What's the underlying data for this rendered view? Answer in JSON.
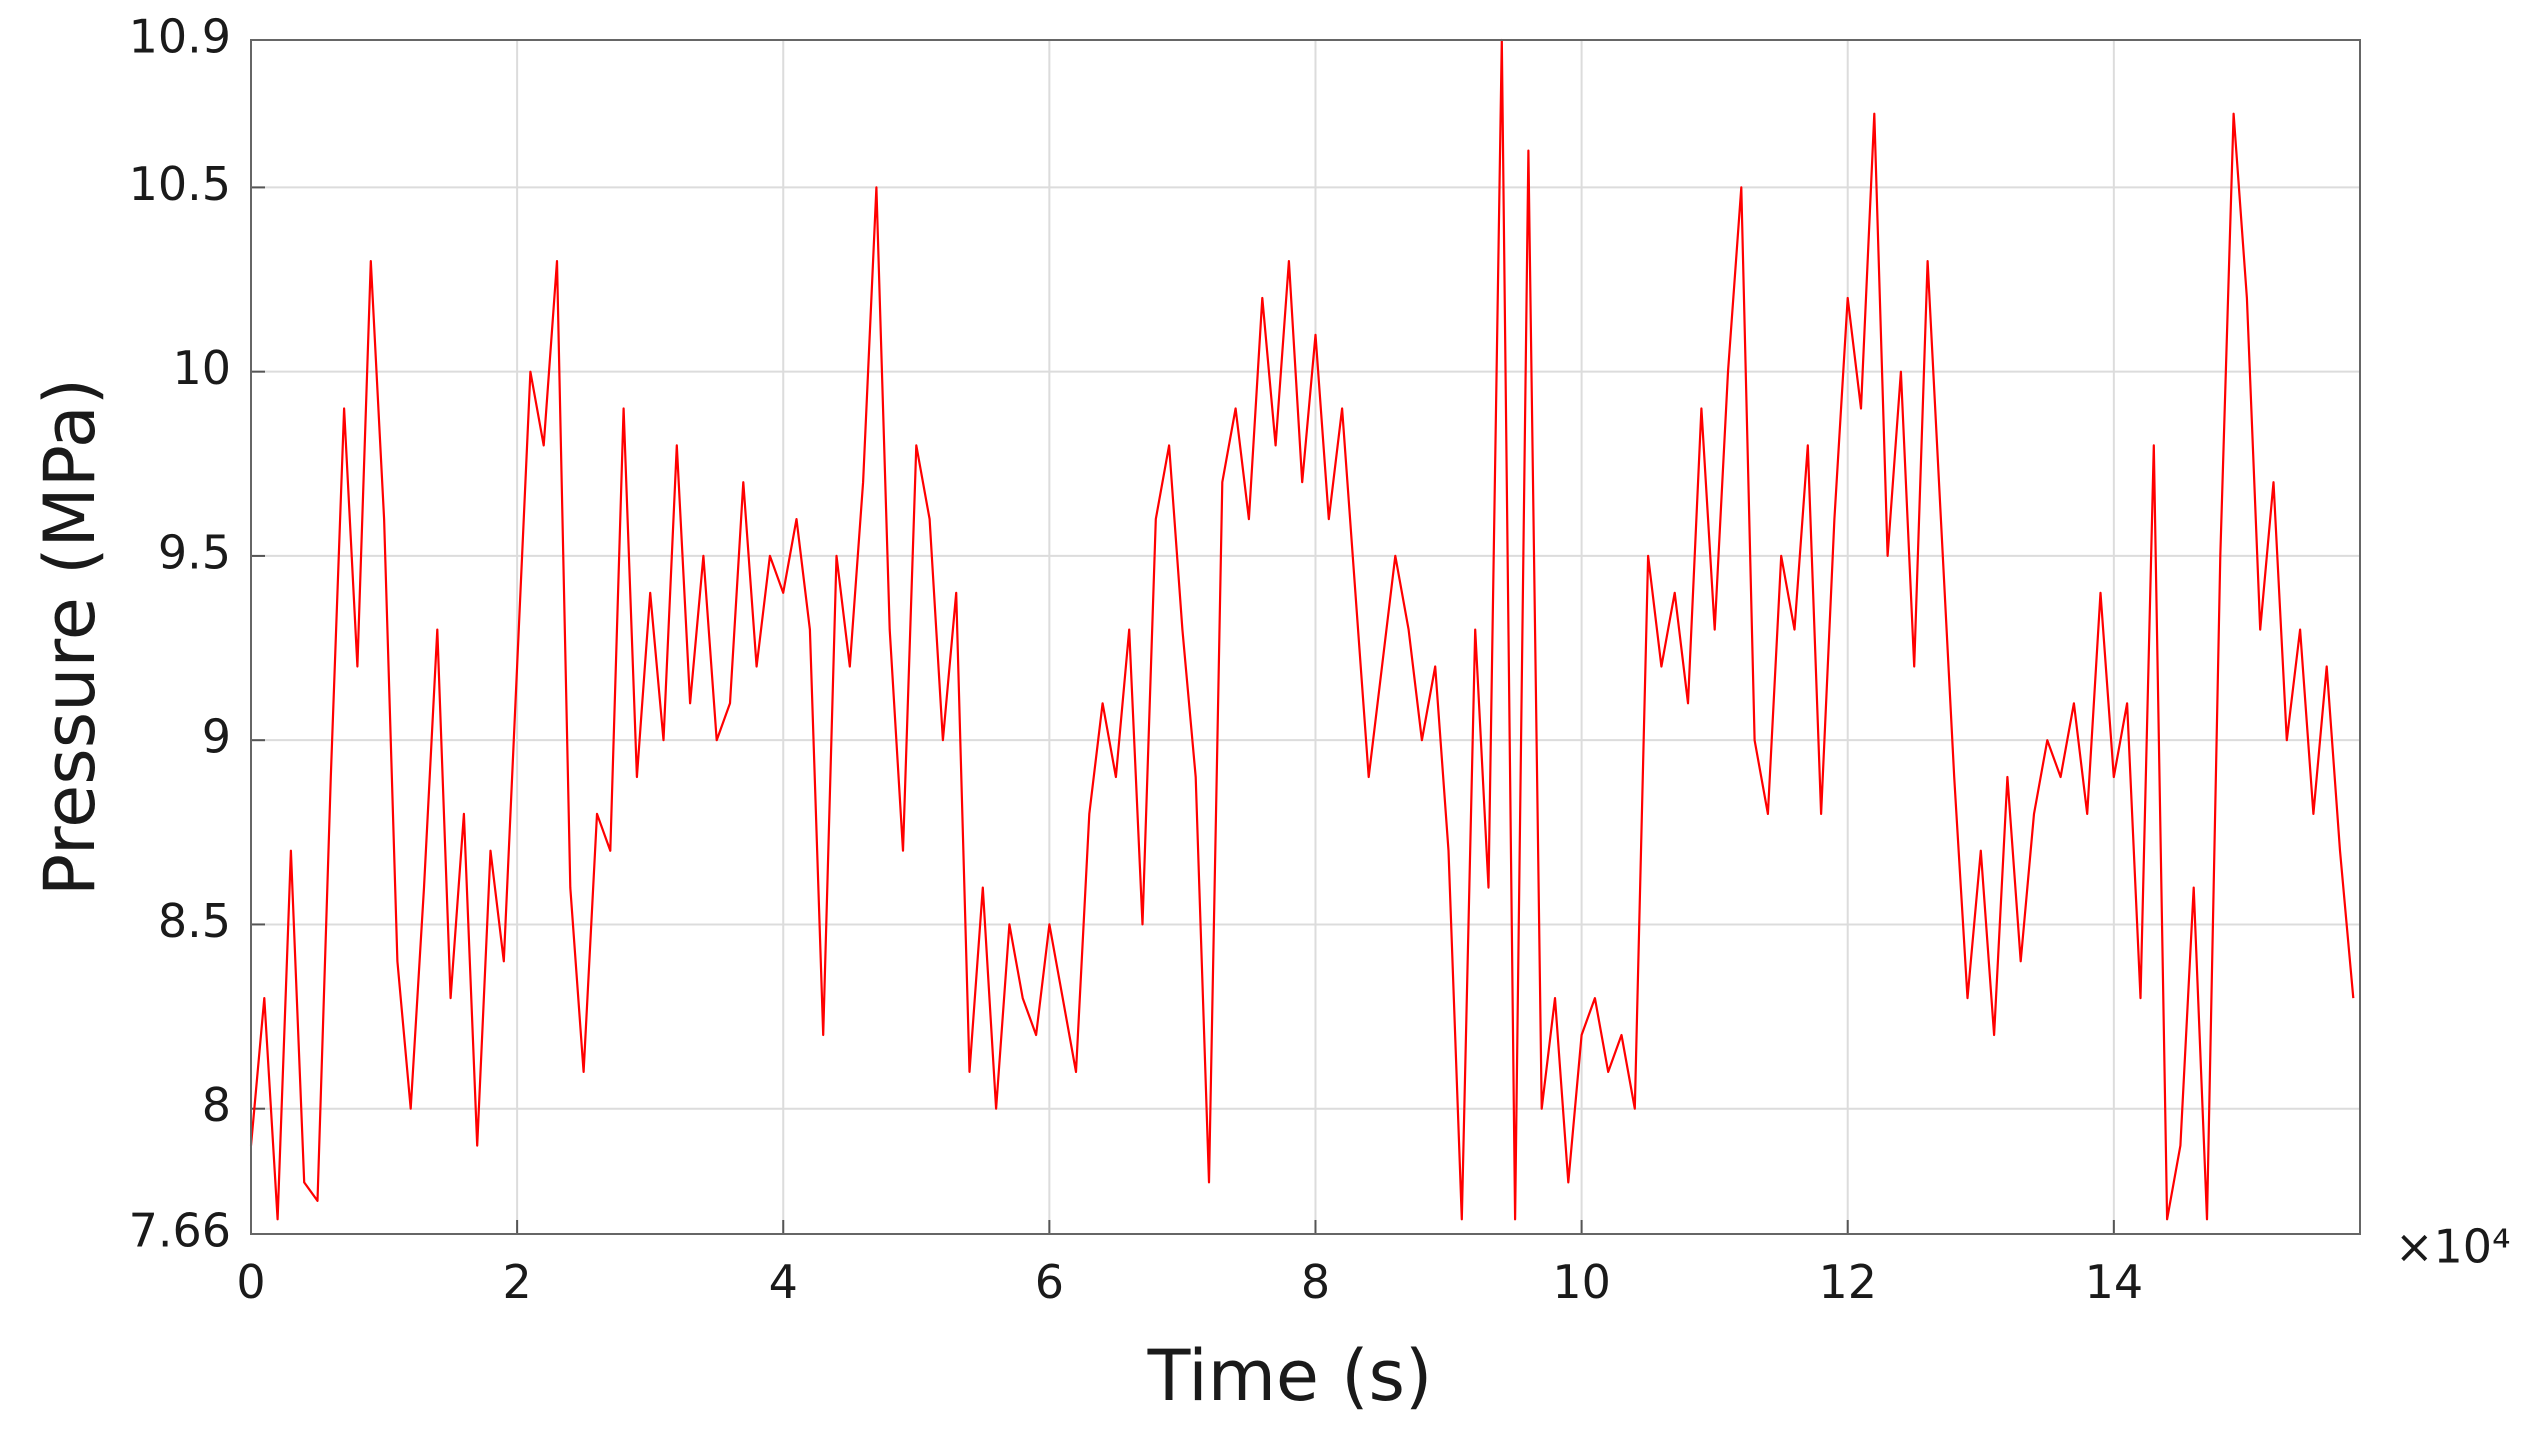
{
  "chart_data": {
    "type": "line",
    "xlabel": "Time (s)",
    "ylabel": "Pressure (MPa)",
    "x_multiplier_label": "×10⁴",
    "xlim": [
      0,
      15.85
    ],
    "ylim": [
      7.66,
      10.9
    ],
    "xticks": [
      0,
      2,
      4,
      6,
      8,
      10,
      12,
      14
    ],
    "yticks": [
      7.66,
      8,
      8.5,
      9,
      9.5,
      10,
      10.5,
      10.9
    ],
    "grid": true,
    "series": [
      {
        "color": "#ff0000",
        "x": [
          0,
          0.1,
          0.2,
          0.3,
          0.4,
          0.5,
          0.6,
          0.7,
          0.8,
          0.9,
          1,
          1.1,
          1.2,
          1.3,
          1.4,
          1.5,
          1.6,
          1.7,
          1.8,
          1.9,
          2,
          2.1,
          2.2,
          2.3,
          2.4,
          2.5,
          2.6,
          2.7,
          2.8,
          2.9,
          3,
          3.1,
          3.2,
          3.3,
          3.4,
          3.5,
          3.6,
          3.7,
          3.8,
          3.9,
          4,
          4.1,
          4.2,
          4.3,
          4.4,
          4.5,
          4.6,
          4.7,
          4.8,
          4.9,
          5,
          5.1,
          5.2,
          5.3,
          5.4,
          5.5,
          5.6,
          5.7,
          5.8,
          5.9,
          6,
          6.1,
          6.2,
          6.3,
          6.4,
          6.5,
          6.6,
          6.7,
          6.8,
          6.9,
          7,
          7.1,
          7.2,
          7.3,
          7.4,
          7.5,
          7.6,
          7.7,
          7.8,
          7.9,
          8,
          8.1,
          8.2,
          8.3,
          8.4,
          8.5,
          8.6,
          8.7,
          8.8,
          8.9,
          9,
          9.1,
          9.2,
          9.3,
          9.4,
          9.5,
          9.6,
          9.7,
          9.8,
          9.9,
          10,
          10.1,
          10.2,
          10.3,
          10.4,
          10.5,
          10.6,
          10.7,
          10.8,
          10.9,
          11,
          11.1,
          11.2,
          11.3,
          11.4,
          11.5,
          11.6,
          11.7,
          11.8,
          11.9,
          12,
          12.1,
          12.2,
          12.3,
          12.4,
          12.5,
          12.6,
          12.7,
          12.8,
          12.9,
          13,
          13.1,
          13.2,
          13.3,
          13.4,
          13.5,
          13.6,
          13.7,
          13.8,
          13.9,
          14,
          14.1,
          14.2,
          14.3,
          14.4,
          14.5,
          14.6,
          14.7,
          14.8,
          14.9,
          15,
          15.1,
          15.2,
          15.3,
          15.4,
          15.5,
          15.6,
          15.7,
          15.8
        ],
        "values": [
          7.9,
          8.3,
          7.7,
          8.7,
          7.8,
          7.75,
          8.9,
          9.9,
          9.2,
          10.3,
          9.6,
          8.4,
          8.0,
          8.6,
          9.3,
          8.3,
          8.8,
          7.9,
          8.7,
          8.4,
          9.2,
          10.0,
          9.8,
          10.3,
          8.6,
          8.1,
          8.8,
          8.7,
          9.9,
          8.9,
          9.4,
          9.0,
          9.8,
          9.1,
          9.5,
          9.0,
          9.1,
          9.7,
          9.2,
          9.5,
          9.4,
          9.6,
          9.3,
          8.2,
          9.5,
          9.2,
          9.7,
          10.5,
          9.3,
          8.7,
          9.8,
          9.6,
          9.0,
          9.4,
          8.1,
          8.6,
          8.0,
          8.5,
          8.3,
          8.2,
          8.5,
          8.3,
          8.1,
          8.8,
          9.1,
          8.9,
          9.3,
          8.5,
          9.6,
          9.8,
          9.3,
          8.9,
          7.8,
          9.7,
          9.9,
          9.6,
          10.2,
          9.8,
          10.3,
          9.7,
          10.1,
          9.6,
          9.9,
          9.4,
          8.9,
          9.2,
          9.5,
          9.3,
          9.0,
          9.2,
          8.7,
          7.7,
          9.3,
          8.6,
          10.9,
          7.7,
          10.6,
          8.0,
          8.3,
          7.8,
          8.2,
          8.3,
          8.1,
          8.2,
          8.0,
          9.5,
          9.2,
          9.4,
          9.1,
          9.9,
          9.3,
          10.0,
          10.5,
          9.0,
          8.8,
          9.5,
          9.3,
          9.8,
          8.8,
          9.6,
          10.2,
          9.9,
          10.7,
          9.5,
          10.0,
          9.2,
          10.3,
          9.6,
          8.9,
          8.3,
          8.7,
          8.2,
          8.9,
          8.4,
          8.8,
          9.0,
          8.9,
          9.1,
          8.8,
          9.4,
          8.9,
          9.1,
          8.3,
          9.8,
          7.7,
          7.9,
          8.6,
          7.7,
          9.5,
          10.7,
          10.2,
          9.3,
          9.7,
          9.0,
          9.3,
          8.8,
          9.2,
          8.7,
          8.3
        ]
      }
    ]
  }
}
